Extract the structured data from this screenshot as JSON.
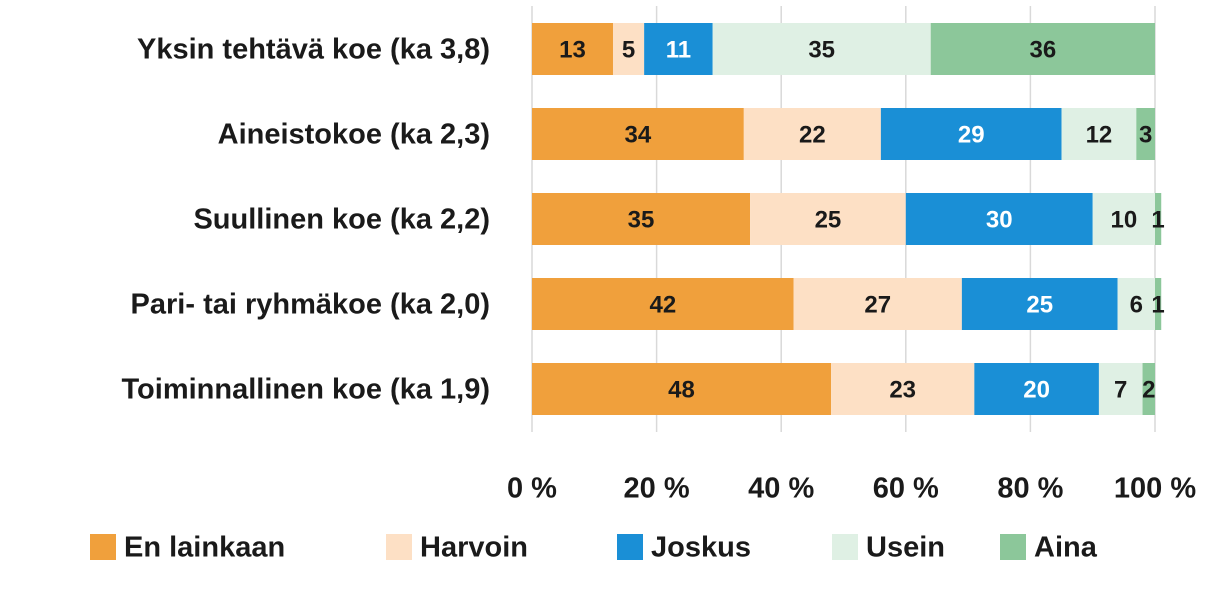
{
  "chart_data": {
    "type": "stacked_bar_horizontal",
    "categories": [
      "Yksin tehtävä koe (ka 3,8)",
      "Aineistokoe (ka 2,3)",
      "Suullinen koe (ka 2,2)",
      "Pari- tai ryhmäkoe (ka 2,0)",
      "Toiminnallinen koe (ka 1,9)"
    ],
    "series": [
      {
        "name": "En lainkaan",
        "color": "#f0a03c",
        "text_color": "#1a1a1a",
        "values": [
          13,
          34,
          35,
          42,
          48
        ]
      },
      {
        "name": "Harvoin",
        "color": "#fde0c5",
        "text_color": "#1a1a1a",
        "values": [
          5,
          22,
          25,
          27,
          23
        ]
      },
      {
        "name": "Joskus",
        "color": "#1a8fd6",
        "text_color": "#ffffff",
        "values": [
          11,
          29,
          30,
          25,
          20
        ]
      },
      {
        "name": "Usein",
        "color": "#dff0e4",
        "text_color": "#1a1a1a",
        "values": [
          35,
          12,
          10,
          6,
          7
        ]
      },
      {
        "name": "Aina",
        "color": "#8cc79a",
        "text_color": "#1a1a1a",
        "values": [
          36,
          3,
          1,
          1,
          2
        ]
      }
    ],
    "xlim": [
      0,
      100
    ],
    "xticks": [
      {
        "value": 0,
        "label": "0 %"
      },
      {
        "value": 20,
        "label": "20 %"
      },
      {
        "value": 40,
        "label": "40 %"
      },
      {
        "value": 60,
        "label": "60 %"
      },
      {
        "value": 80,
        "label": "80 %"
      },
      {
        "value": 100,
        "label": "100 %"
      }
    ],
    "grid": true,
    "legend": "bottom"
  }
}
